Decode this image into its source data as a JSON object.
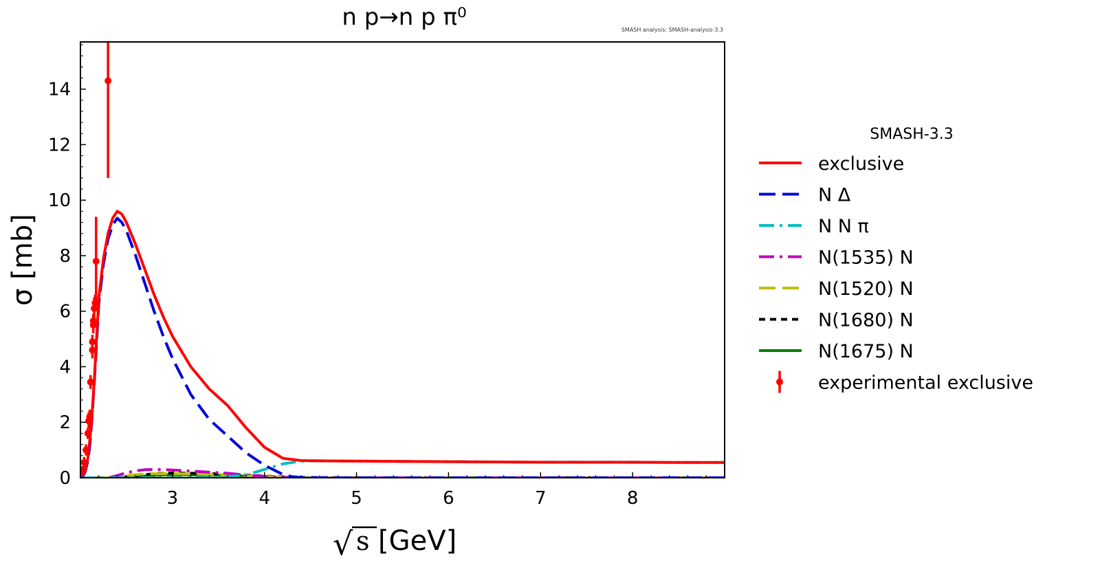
{
  "chart_data": {
    "type": "line",
    "title": "n p→n p π⁰",
    "annotation": "SMASH analysis: SMASH-analysis-3.3",
    "xlabel_symbol": "√",
    "xlabel_var": "s",
    "xlabel_unit": "[GeV]",
    "ylabel": "σ [mb]",
    "xlim": [
      2.0,
      9.0
    ],
    "ylim": [
      0,
      15.7
    ],
    "xticks": [
      3,
      4,
      5,
      6,
      7,
      8
    ],
    "yticks": [
      0,
      2,
      4,
      6,
      8,
      10,
      12,
      14
    ],
    "grid": false,
    "legend": {
      "title": "SMASH-3.3",
      "placement": "outside-right"
    },
    "series": [
      {
        "name": "exclusive",
        "color": "#ff0000",
        "dash": "solid",
        "x": [
          2.02,
          2.05,
          2.08,
          2.1,
          2.12,
          2.15,
          2.18,
          2.2,
          2.25,
          2.3,
          2.35,
          2.4,
          2.45,
          2.5,
          2.6,
          2.7,
          2.8,
          2.9,
          3.0,
          3.2,
          3.4,
          3.6,
          3.8,
          4.0,
          4.2,
          4.4,
          4.6,
          5.0,
          5.5,
          6.0,
          6.5,
          7.0,
          7.5,
          8.0,
          8.5,
          9.0
        ],
        "y": [
          0.05,
          0.25,
          0.7,
          1.3,
          2.0,
          3.5,
          5.3,
          6.5,
          7.9,
          8.8,
          9.35,
          9.6,
          9.5,
          9.2,
          8.4,
          7.5,
          6.6,
          5.8,
          5.1,
          4.0,
          3.2,
          2.6,
          1.8,
          1.1,
          0.7,
          0.62,
          0.61,
          0.6,
          0.59,
          0.58,
          0.57,
          0.56,
          0.56,
          0.56,
          0.55,
          0.55
        ]
      },
      {
        "name": "N Δ",
        "color": "#0000dd",
        "dash": "long-dash",
        "x": [
          2.02,
          2.05,
          2.08,
          2.1,
          2.12,
          2.15,
          2.18,
          2.2,
          2.25,
          2.3,
          2.35,
          2.4,
          2.45,
          2.5,
          2.6,
          2.7,
          2.8,
          2.9,
          3.0,
          3.2,
          3.4,
          3.6,
          3.8,
          4.0,
          4.2,
          4.3,
          4.4,
          4.6,
          5.0,
          6.0,
          7.0,
          8.0,
          9.0
        ],
        "y": [
          0.03,
          0.2,
          0.6,
          1.1,
          1.9,
          3.4,
          5.1,
          6.3,
          7.7,
          8.6,
          9.1,
          9.35,
          9.2,
          8.9,
          8.0,
          7.0,
          6.0,
          5.1,
          4.3,
          3.0,
          2.1,
          1.5,
          0.9,
          0.45,
          0.12,
          0.04,
          0.01,
          0.0,
          0.0,
          0.0,
          0.0,
          0.0,
          0.0
        ]
      },
      {
        "name": "N N π",
        "color": "#00bfbf",
        "dash": "dash-dot",
        "x": [
          2.0,
          3.0,
          3.5,
          3.8,
          4.0,
          4.2,
          4.4,
          4.6,
          5.0,
          5.5,
          6.0,
          6.5,
          7.0,
          7.5,
          8.0,
          8.5,
          9.0
        ],
        "y": [
          0.0,
          0.0,
          0.02,
          0.1,
          0.3,
          0.5,
          0.6,
          0.61,
          0.6,
          0.59,
          0.58,
          0.57,
          0.56,
          0.56,
          0.56,
          0.55,
          0.55
        ]
      },
      {
        "name": "N(1535) N",
        "color": "#bf00bf",
        "dash": "dash-dot",
        "x": [
          2.0,
          2.3,
          2.4,
          2.5,
          2.6,
          2.7,
          2.8,
          3.0,
          3.2,
          3.4,
          3.6,
          3.8,
          4.0,
          4.2,
          4.4,
          5.0,
          6.0,
          7.0,
          8.0,
          9.0
        ],
        "y": [
          0.0,
          0.0,
          0.08,
          0.18,
          0.25,
          0.29,
          0.3,
          0.28,
          0.24,
          0.2,
          0.16,
          0.1,
          0.05,
          0.02,
          0.0,
          0.0,
          0.0,
          0.0,
          0.0,
          0.0
        ]
      },
      {
        "name": "N(1520) N",
        "color": "#bfbf00",
        "dash": "long-dash",
        "x": [
          2.0,
          2.3,
          2.5,
          2.7,
          3.0,
          3.3,
          3.6,
          3.9,
          4.2,
          4.5,
          5.0,
          6.0,
          7.0,
          8.0,
          9.0
        ],
        "y": [
          0.0,
          0.0,
          0.08,
          0.14,
          0.15,
          0.13,
          0.1,
          0.06,
          0.02,
          0.0,
          0.0,
          0.0,
          0.0,
          0.0,
          0.0
        ]
      },
      {
        "name": "N(1680) N",
        "color": "#000000",
        "dash": "short-dash",
        "x": [
          2.0,
          2.4,
          2.6,
          2.8,
          3.0,
          3.3,
          3.6,
          3.9,
          4.2,
          4.5,
          5.0,
          6.0,
          7.0,
          8.0,
          9.0
        ],
        "y": [
          0.0,
          0.0,
          0.07,
          0.15,
          0.17,
          0.16,
          0.13,
          0.08,
          0.03,
          0.01,
          0.0,
          0.0,
          0.0,
          0.0,
          0.0
        ]
      },
      {
        "name": "N(1675) N",
        "color": "#008000",
        "dash": "solid",
        "x": [
          2.0,
          2.4,
          2.6,
          2.8,
          3.0,
          3.3,
          3.6,
          3.9,
          4.2,
          4.5,
          5.0,
          6.0,
          7.0,
          8.0,
          9.0
        ],
        "y": [
          0.0,
          0.0,
          0.04,
          0.09,
          0.11,
          0.1,
          0.08,
          0.05,
          0.02,
          0.0,
          0.0,
          0.0,
          0.0,
          0.0,
          0.0
        ]
      }
    ],
    "experimental": {
      "name": "experimental exclusive",
      "color": "#ff0000",
      "points": [
        {
          "x": 2.02,
          "y": 0.25,
          "err": 0.15
        },
        {
          "x": 2.04,
          "y": 0.55,
          "err": 0.2
        },
        {
          "x": 2.06,
          "y": 1.0,
          "err": 0.2
        },
        {
          "x": 2.08,
          "y": 1.6,
          "err": 0.2
        },
        {
          "x": 2.09,
          "y": 2.05,
          "err": 0.3
        },
        {
          "x": 2.1,
          "y": 2.2,
          "err": 0.25
        },
        {
          "x": 2.11,
          "y": 3.45,
          "err": 0.25
        },
        {
          "x": 2.13,
          "y": 4.6,
          "err": 0.3
        },
        {
          "x": 2.13,
          "y": 4.9,
          "err": 0.25
        },
        {
          "x": 2.14,
          "y": 5.5,
          "err": 0.3
        },
        {
          "x": 2.14,
          "y": 5.65,
          "err": 0.25
        },
        {
          "x": 2.15,
          "y": 6.1,
          "err": 0.4
        },
        {
          "x": 2.16,
          "y": 6.3,
          "err": 0.3
        },
        {
          "x": 2.17,
          "y": 7.8,
          "err": 1.6
        },
        {
          "x": 2.3,
          "y": 14.3,
          "err": 3.5
        }
      ]
    }
  }
}
